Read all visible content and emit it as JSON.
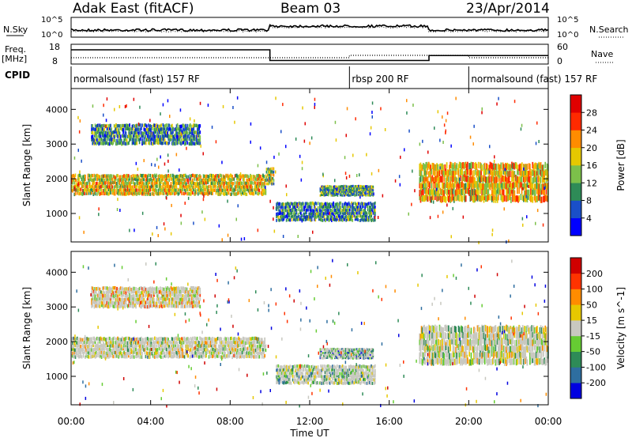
{
  "header": {
    "station": "Adak East (fitACF)",
    "beam": "Beam 03",
    "date": "23/Apr/2014"
  },
  "noise_panel": {
    "left_label": "N.Sky",
    "right_label": "N.Search",
    "left_ticks": [
      "10^5",
      "10^0"
    ],
    "right_ticks": [
      "10^5",
      "10^0"
    ]
  },
  "freq_panel": {
    "left_label": "Freq.",
    "left_unit": "[MHz]",
    "right_label": "Nave",
    "left_ticks": [
      "18",
      "8"
    ],
    "right_ticks": [
      "60",
      "0"
    ]
  },
  "cpid_panel": {
    "label": "CPID",
    "segments": [
      {
        "name": "normalsound (fast) 157 RF",
        "start": 0,
        "end": 14
      },
      {
        "name": "rbsp 200 RF",
        "start": 14,
        "end": 20
      },
      {
        "name": "normalsound (fast) 157 RF",
        "start": 20,
        "end": 24
      }
    ]
  },
  "chart_data": [
    {
      "type": "heatmap",
      "quantity": "Power",
      "ylabel": "Slant Range [km]",
      "ylim": [
        180,
        4600
      ],
      "yticks": [
        "1000",
        "2000",
        "3000",
        "4000"
      ],
      "colorbar_label": "Power [dB]",
      "colorbar_ticks": [
        "4",
        "8",
        "12",
        "16",
        "20",
        "24",
        "28"
      ],
      "colors": [
        "#0000ff",
        "#1a4fc8",
        "#2e8b57",
        "#7cc04a",
        "#e6c800",
        "#ff8c00",
        "#ff2a00",
        "#e00000"
      ],
      "features": [
        {
          "t0": 0.0,
          "t1": 9.8,
          "r0": 1500,
          "r1": 2100,
          "level": 0.55
        },
        {
          "t0": 1.0,
          "t1": 6.5,
          "r0": 2950,
          "r1": 3550,
          "level": 0.3
        },
        {
          "t0": 9.8,
          "t1": 10.2,
          "r0": 1800,
          "r1": 2300,
          "level": 0.45
        },
        {
          "t0": 10.3,
          "t1": 15.3,
          "r0": 750,
          "r1": 1300,
          "level": 0.3
        },
        {
          "t0": 12.5,
          "t1": 15.2,
          "r0": 1500,
          "r1": 1800,
          "level": 0.35
        },
        {
          "t0": 17.5,
          "t1": 24.0,
          "r0": 1300,
          "r1": 2400,
          "level": 0.6
        }
      ]
    },
    {
      "type": "heatmap",
      "quantity": "Velocity",
      "ylabel": "Slant Range [km]",
      "ylim": [
        180,
        4600
      ],
      "yticks": [
        "1000",
        "2000",
        "3000",
        "4000"
      ],
      "colorbar_label": "Velocity [m s^-1]",
      "colorbar_ticks": [
        "200",
        "100",
        "50",
        "15",
        "-15",
        "-50",
        "-100",
        "-200"
      ],
      "colors": [
        "#0000e0",
        "#2e6ea0",
        "#2e8b57",
        "#66cc33",
        "#c8c8c0",
        "#e6c800",
        "#ff8c00",
        "#ff3300",
        "#d00000"
      ],
      "features": [
        {
          "t0": 0.0,
          "t1": 9.8,
          "r0": 1500,
          "r1": 2100,
          "level": 0.5
        },
        {
          "t0": 1.0,
          "t1": 6.5,
          "r0": 2950,
          "r1": 3550,
          "level": 0.6
        },
        {
          "t0": 10.3,
          "t1": 15.3,
          "r0": 750,
          "r1": 1300,
          "level": 0.4
        },
        {
          "t0": 12.5,
          "t1": 15.2,
          "r0": 1500,
          "r1": 1800,
          "level": 0.3
        },
        {
          "t0": 17.5,
          "t1": 24.0,
          "r0": 1300,
          "r1": 2400,
          "level": 0.5
        }
      ]
    }
  ],
  "x_axis": {
    "label": "Time UT",
    "ticks": [
      "00:00",
      "04:00",
      "08:00",
      "12:00",
      "16:00",
      "20:00",
      "00:00"
    ]
  }
}
